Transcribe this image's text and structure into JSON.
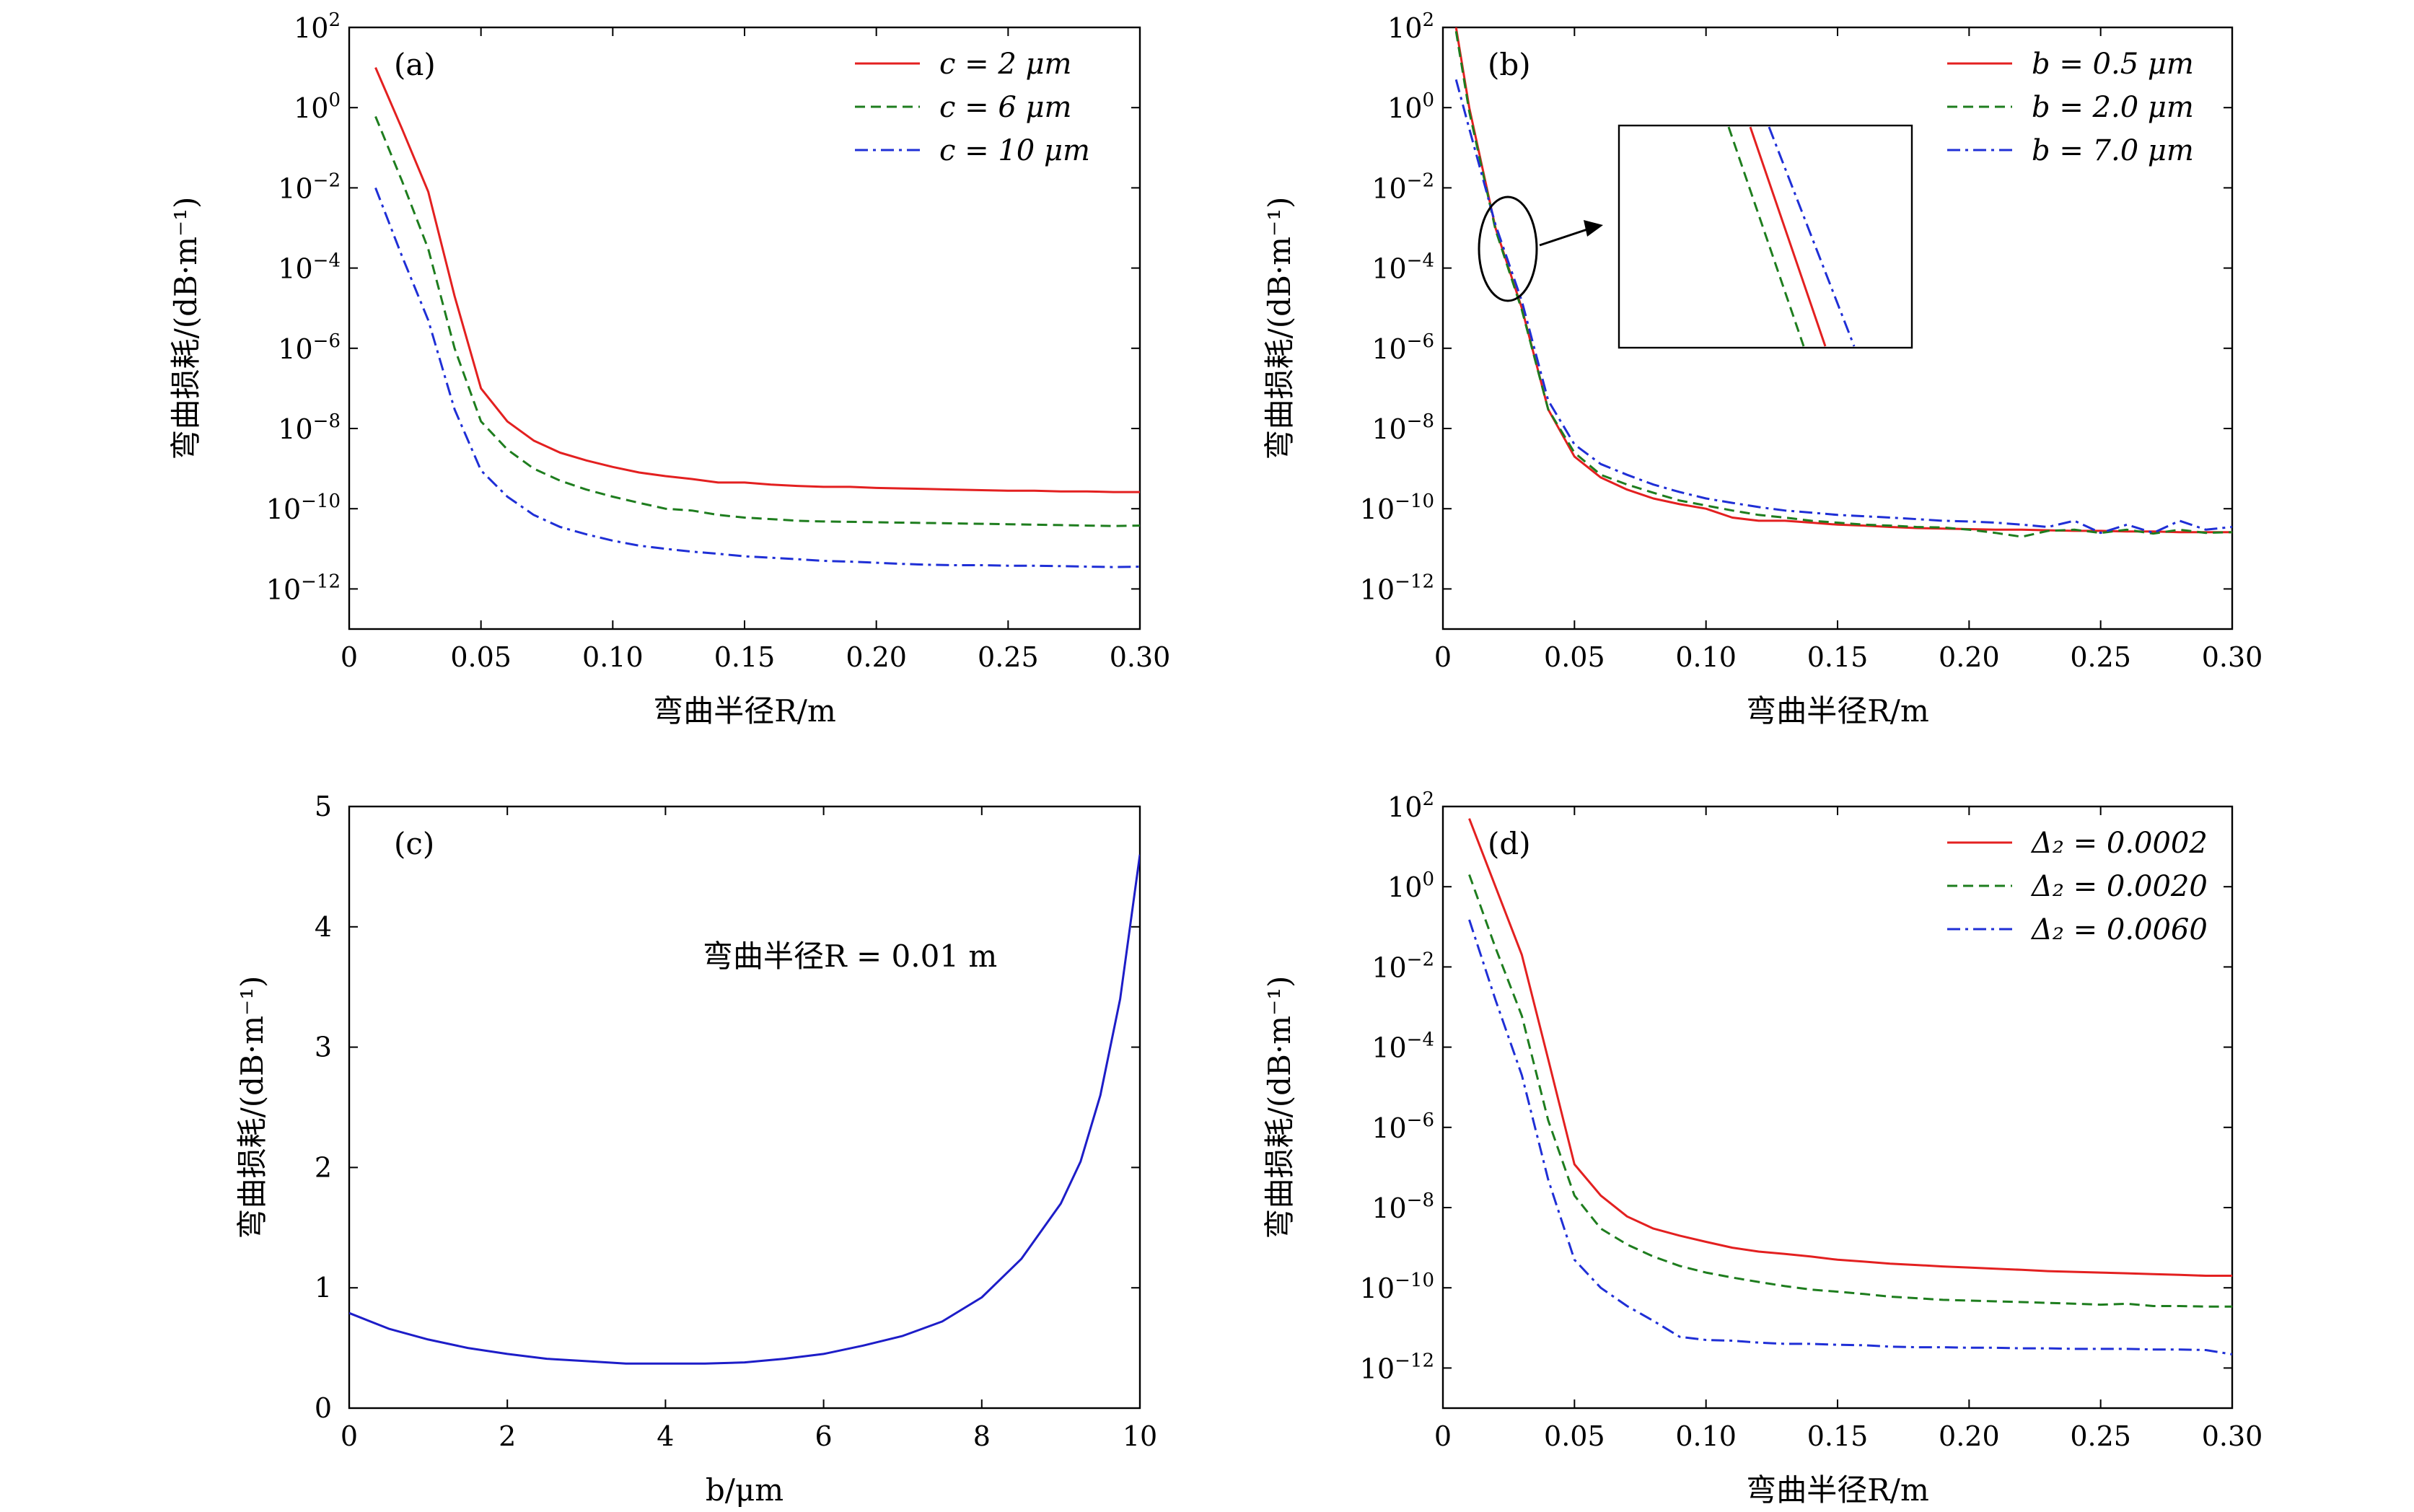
{
  "colors": {
    "red": "#e32020",
    "green": "#1e7d1e",
    "blue": "#1f2fd6",
    "line_c": "#1d1dc8",
    "axis": "#000000"
  },
  "chart_data": [
    {
      "panel": "(a)",
      "type": "line",
      "yscale": "log",
      "xlabel": "弯曲半径R/m",
      "ylabel": "弯曲损耗/(dB·m⁻¹)",
      "xlim": [
        0,
        0.3
      ],
      "ylim_exp": [
        -13,
        2
      ],
      "xticks": [
        "0",
        "0.05",
        "0.10",
        "0.15",
        "0.20",
        "0.25",
        "0.30"
      ],
      "yticks_exp": [
        "2",
        "0",
        "-2",
        "-4",
        "-6",
        "-8",
        "-10",
        "-12"
      ],
      "legend_position": "top-right",
      "series": [
        {
          "name": "c = 2 μm",
          "color": "red",
          "dash": "solid",
          "x": [
            0.01,
            0.02,
            0.03,
            0.04,
            0.05,
            0.06,
            0.07,
            0.08,
            0.09,
            0.1,
            0.11,
            0.12,
            0.13,
            0.14,
            0.15,
            0.16,
            0.17,
            0.18,
            0.19,
            0.2,
            0.21,
            0.22,
            0.23,
            0.24,
            0.25,
            0.26,
            0.27,
            0.28,
            0.29,
            0.3
          ],
          "y": [
            10.0,
            0.3,
            0.008,
            2e-05,
            1e-07,
            1.5e-08,
            5e-09,
            2.5e-09,
            1.6e-09,
            1.1e-09,
            8e-10,
            6.5e-10,
            5.5e-10,
            4.5e-10,
            4.5e-10,
            4e-10,
            3.7e-10,
            3.5e-10,
            3.5e-10,
            3.3e-10,
            3.2e-10,
            3.1e-10,
            3e-10,
            2.9e-10,
            2.8e-10,
            2.8e-10,
            2.7e-10,
            2.7e-10,
            2.6e-10,
            2.6e-10
          ]
        },
        {
          "name": "c = 6 μm",
          "color": "green",
          "dash": "dashed",
          "x": [
            0.01,
            0.02,
            0.03,
            0.04,
            0.05,
            0.06,
            0.07,
            0.08,
            0.09,
            0.1,
            0.11,
            0.12,
            0.13,
            0.14,
            0.15,
            0.16,
            0.17,
            0.18,
            0.19,
            0.2,
            0.21,
            0.22,
            0.23,
            0.24,
            0.25,
            0.26,
            0.27,
            0.28,
            0.29,
            0.3
          ],
          "y": [
            0.6,
            0.015,
            0.0003,
            1e-06,
            1.5e-08,
            3e-09,
            1e-09,
            5e-10,
            3e-10,
            2e-10,
            1.4e-10,
            1e-10,
            9e-11,
            7e-11,
            6e-11,
            5.5e-11,
            5e-11,
            4.8e-11,
            4.7e-11,
            4.6e-11,
            4.5e-11,
            4.4e-11,
            4.3e-11,
            4.2e-11,
            4.1e-11,
            4e-11,
            3.9e-11,
            3.8e-11,
            3.7e-11,
            3.8e-11
          ]
        },
        {
          "name": "c = 10 μm",
          "color": "blue",
          "dash": "dashdot",
          "x": [
            0.01,
            0.02,
            0.03,
            0.04,
            0.05,
            0.06,
            0.07,
            0.08,
            0.09,
            0.1,
            0.11,
            0.12,
            0.13,
            0.14,
            0.15,
            0.16,
            0.17,
            0.18,
            0.19,
            0.2,
            0.21,
            0.22,
            0.23,
            0.24,
            0.25,
            0.26,
            0.27,
            0.28,
            0.29,
            0.3
          ],
          "y": [
            0.01,
            0.0002,
            5e-06,
            3e-08,
            9e-10,
            2e-10,
            7e-11,
            3.5e-11,
            2.3e-11,
            1.6e-11,
            1.2e-11,
            1e-11,
            8.5e-12,
            7.5e-12,
            6.5e-12,
            6e-12,
            5.5e-12,
            5e-12,
            4.8e-12,
            4.5e-12,
            4.2e-12,
            4e-12,
            3.9e-12,
            3.9e-12,
            3.8e-12,
            3.8e-12,
            3.7e-12,
            3.6e-12,
            3.5e-12,
            3.6e-12
          ]
        }
      ]
    },
    {
      "panel": "(b)",
      "type": "line",
      "yscale": "log",
      "xlabel": "弯曲半径R/m",
      "ylabel": "弯曲损耗/(dB·m⁻¹)",
      "xlim": [
        0,
        0.3
      ],
      "ylim_exp": [
        -13,
        2
      ],
      "xticks": [
        "0",
        "0.05",
        "0.10",
        "0.15",
        "0.20",
        "0.25",
        "0.30"
      ],
      "yticks_exp": [
        "2",
        "0",
        "-2",
        "-4",
        "-6",
        "-8",
        "-10",
        "-12"
      ],
      "legend_position": "top-right",
      "has_inset_zoom": true,
      "series": [
        {
          "name": "b = 0.5 μm",
          "color": "red",
          "dash": "solid",
          "x": [
            0.005,
            0.01,
            0.02,
            0.03,
            0.04,
            0.05,
            0.06,
            0.07,
            0.08,
            0.09,
            0.1,
            0.11,
            0.12,
            0.13,
            0.14,
            0.15,
            0.16,
            0.17,
            0.18,
            0.19,
            0.2,
            0.21,
            0.22,
            0.23,
            0.24,
            0.25,
            0.26,
            0.27,
            0.28,
            0.29,
            0.3
          ],
          "y": [
            100.0,
            1.0,
            0.001,
            1e-05,
            3e-08,
            2e-09,
            6e-10,
            3e-10,
            1.8e-10,
            1.3e-10,
            1e-10,
            6e-11,
            5e-11,
            5e-11,
            4.5e-11,
            4e-11,
            3.8e-11,
            3.5e-11,
            3.3e-11,
            3.2e-11,
            3.1e-11,
            3e-11,
            3e-11,
            2.9e-11,
            2.8e-11,
            2.8e-11,
            2.7e-11,
            2.7e-11,
            2.6e-11,
            2.6e-11,
            2.6e-11
          ]
        },
        {
          "name": "b = 2.0 μm",
          "color": "green",
          "dash": "dashed",
          "x": [
            0.005,
            0.01,
            0.02,
            0.03,
            0.04,
            0.05,
            0.06,
            0.07,
            0.08,
            0.09,
            0.1,
            0.11,
            0.12,
            0.13,
            0.14,
            0.15,
            0.16,
            0.17,
            0.18,
            0.19,
            0.2,
            0.21,
            0.22,
            0.23,
            0.24,
            0.25,
            0.26,
            0.27,
            0.28,
            0.29,
            0.3
          ],
          "y": [
            80.0,
            0.8,
            0.0009,
            9e-06,
            3e-08,
            2.5e-09,
            7e-10,
            4e-10,
            2.5e-10,
            1.6e-10,
            1.2e-10,
            9e-11,
            7e-11,
            6e-11,
            5e-11,
            4.5e-11,
            4e-11,
            3.8e-11,
            3.5e-11,
            3.4e-11,
            3e-11,
            2.5e-11,
            2e-11,
            2.8e-11,
            3e-11,
            2.5e-11,
            3e-11,
            2.4e-11,
            3e-11,
            2.5e-11,
            2.6e-11
          ]
        },
        {
          "name": "b = 7.0 μm",
          "color": "blue",
          "dash": "dashdot",
          "x": [
            0.005,
            0.01,
            0.02,
            0.03,
            0.04,
            0.05,
            0.06,
            0.07,
            0.08,
            0.09,
            0.1,
            0.11,
            0.12,
            0.13,
            0.14,
            0.15,
            0.16,
            0.17,
            0.18,
            0.19,
            0.2,
            0.21,
            0.22,
            0.23,
            0.24,
            0.25,
            0.26,
            0.27,
            0.28,
            0.29,
            0.3
          ],
          "y": [
            5.0,
            0.3,
            0.0012,
            1.5e-05,
            5e-08,
            4e-09,
            1.3e-09,
            7e-10,
            4e-10,
            2.6e-10,
            1.8e-10,
            1.4e-10,
            1.1e-10,
            9e-11,
            8e-11,
            7e-11,
            6.5e-11,
            6e-11,
            5.5e-11,
            5e-11,
            4.8e-11,
            4.5e-11,
            4e-11,
            3.5e-11,
            5e-11,
            2.5e-11,
            4e-11,
            2.5e-11,
            5e-11,
            3e-11,
            3.5e-11
          ]
        }
      ]
    },
    {
      "panel": "(c)",
      "type": "line",
      "yscale": "linear",
      "xlabel": "b/μm",
      "ylabel": "弯曲损耗/(dB·m⁻¹)",
      "xlim": [
        0,
        10
      ],
      "ylim": [
        0,
        5
      ],
      "xticks": [
        "0",
        "2",
        "4",
        "6",
        "8",
        "10"
      ],
      "yticks": [
        "0",
        "1",
        "2",
        "3",
        "4",
        "5"
      ],
      "annotation": "弯曲半径R = 0.01 m",
      "series": [
        {
          "color": "line_c",
          "dash": "solid",
          "x": [
            0,
            0.5,
            1,
            1.5,
            2,
            2.5,
            3,
            3.5,
            4,
            4.5,
            5,
            5.5,
            6,
            6.5,
            7,
            7.5,
            8,
            8.5,
            9,
            9.25,
            9.5,
            9.75,
            10
          ],
          "y": [
            0.79,
            0.66,
            0.57,
            0.5,
            0.45,
            0.41,
            0.39,
            0.37,
            0.37,
            0.37,
            0.38,
            0.41,
            0.45,
            0.52,
            0.6,
            0.72,
            0.92,
            1.24,
            1.7,
            2.05,
            2.6,
            3.4,
            4.6
          ]
        }
      ]
    },
    {
      "panel": "(d)",
      "type": "line",
      "yscale": "log",
      "xlabel": "弯曲半径R/m",
      "ylabel": "弯曲损耗/(dB·m⁻¹)",
      "xlim": [
        0,
        0.3
      ],
      "ylim_exp": [
        -13,
        2
      ],
      "xticks": [
        "0",
        "0.05",
        "0.10",
        "0.15",
        "0.20",
        "0.25",
        "0.30"
      ],
      "yticks_exp": [
        "2",
        "0",
        "-2",
        "-4",
        "-6",
        "-8",
        "-10",
        "-12"
      ],
      "legend_position": "top-right",
      "series": [
        {
          "name": "Δ₂ = 0.0002",
          "color": "red",
          "dash": "solid",
          "x": [
            0.01,
            0.02,
            0.03,
            0.04,
            0.05,
            0.06,
            0.07,
            0.08,
            0.09,
            0.1,
            0.11,
            0.12,
            0.13,
            0.14,
            0.15,
            0.16,
            0.17,
            0.18,
            0.19,
            0.2,
            0.21,
            0.22,
            0.23,
            0.24,
            0.25,
            0.26,
            0.27,
            0.28,
            0.29,
            0.3
          ],
          "y": [
            50.0,
            1.0,
            0.02,
            5e-05,
            1.2e-07,
            2e-08,
            6e-09,
            3e-09,
            2e-09,
            1.4e-09,
            1e-09,
            8e-10,
            7e-10,
            6e-10,
            5e-10,
            4.5e-10,
            4e-10,
            3.7e-10,
            3.4e-10,
            3.2e-10,
            3e-10,
            2.8e-10,
            2.6e-10,
            2.5e-10,
            2.4e-10,
            2.3e-10,
            2.2e-10,
            2.1e-10,
            2e-10,
            2e-10
          ]
        },
        {
          "name": "Δ₂ = 0.0020",
          "color": "green",
          "dash": "dashed",
          "x": [
            0.01,
            0.02,
            0.03,
            0.04,
            0.05,
            0.06,
            0.07,
            0.08,
            0.09,
            0.1,
            0.11,
            0.12,
            0.13,
            0.14,
            0.15,
            0.16,
            0.17,
            0.18,
            0.19,
            0.2,
            0.21,
            0.22,
            0.23,
            0.24,
            0.25,
            0.26,
            0.27,
            0.28,
            0.29,
            0.3
          ],
          "y": [
            2.0,
            0.03,
            0.0006,
            1.5e-06,
            2e-08,
            3e-09,
            1.2e-09,
            6e-10,
            3.5e-10,
            2.4e-10,
            1.8e-10,
            1.4e-10,
            1.1e-10,
            9e-11,
            8e-11,
            7e-11,
            6e-11,
            5.5e-11,
            5e-11,
            4.8e-11,
            4.6e-11,
            4.4e-11,
            4.2e-11,
            4e-11,
            3.8e-11,
            4e-11,
            3.5e-11,
            3.5e-11,
            3.4e-11,
            3.4e-11
          ]
        },
        {
          "name": "Δ₂ = 0.0060",
          "color": "blue",
          "dash": "dashdot",
          "x": [
            0.01,
            0.02,
            0.03,
            0.04,
            0.05,
            0.06,
            0.07,
            0.08,
            0.09,
            0.1,
            0.11,
            0.12,
            0.13,
            0.14,
            0.15,
            0.16,
            0.17,
            0.18,
            0.19,
            0.2,
            0.21,
            0.22,
            0.23,
            0.24,
            0.25,
            0.26,
            0.27,
            0.28,
            0.29,
            0.3
          ],
          "y": [
            0.15,
            0.0015,
            2e-05,
            5e-08,
            5e-10,
            1e-10,
            3.5e-11,
            1.5e-11,
            6e-12,
            5e-12,
            4.8e-12,
            4.3e-12,
            4e-12,
            4e-12,
            3.8e-12,
            3.7e-12,
            3.4e-12,
            3.3e-12,
            3.3e-12,
            3.2e-12,
            3.2e-12,
            3.1e-12,
            3.1e-12,
            3e-12,
            3e-12,
            3e-12,
            2.9e-12,
            2.9e-12,
            2.8e-12,
            2.2e-12
          ]
        }
      ]
    }
  ]
}
